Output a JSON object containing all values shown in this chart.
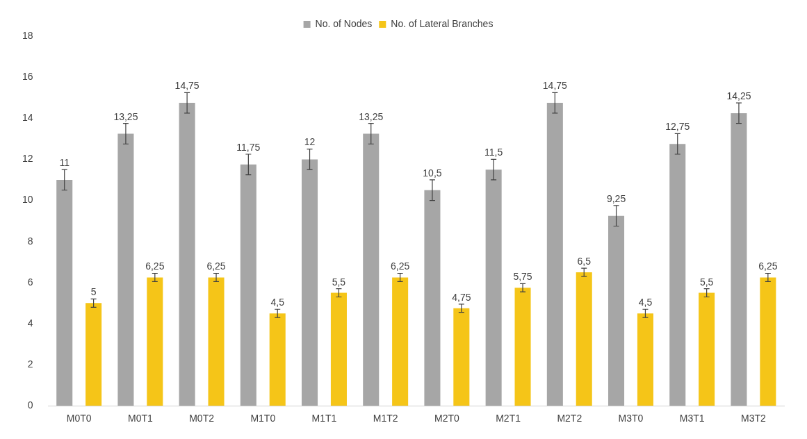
{
  "chart_data": {
    "type": "bar",
    "categories": [
      "M0T0",
      "M0T1",
      "M0T2",
      "M1T0",
      "M1T1",
      "M1T2",
      "M2T0",
      "M2T1",
      "M2T2",
      "M3T0",
      "M3T1",
      "M3T2"
    ],
    "series": [
      {
        "name": "No. of Nodes",
        "color": "#a6a6a6",
        "values": [
          11,
          13.25,
          14.75,
          11.75,
          12,
          13.25,
          10.5,
          11.5,
          14.75,
          9.25,
          12.75,
          14.25
        ],
        "errors": [
          0.5,
          0.5,
          0.5,
          0.5,
          0.5,
          0.5,
          0.5,
          0.5,
          0.5,
          0.5,
          0.5,
          0.5
        ],
        "value_labels": [
          "11",
          "13,25",
          "14,75",
          "11,75",
          "12",
          "13,25",
          "10,5",
          "11,5",
          "14,75",
          "9,25",
          "12,75",
          "14,25"
        ]
      },
      {
        "name": "No. of Lateral Branches",
        "color": "#f5c518",
        "values": [
          5,
          6.25,
          6.25,
          4.5,
          5.5,
          6.25,
          4.75,
          5.75,
          6.5,
          4.5,
          5.5,
          6.25
        ],
        "errors": [
          0.2,
          0.2,
          0.2,
          0.2,
          0.2,
          0.2,
          0.2,
          0.2,
          0.2,
          0.2,
          0.2,
          0.2
        ],
        "value_labels": [
          "5",
          "6,25",
          "6,25",
          "4,5",
          "5,5",
          "6,25",
          "4,75",
          "5,75",
          "6,5",
          "4,5",
          "5,5",
          "6,25"
        ]
      }
    ],
    "ylim": [
      0,
      18
    ],
    "yticks": [
      0,
      2,
      4,
      6,
      8,
      10,
      12,
      14,
      16,
      18
    ],
    "grid": false,
    "legend": "top"
  }
}
